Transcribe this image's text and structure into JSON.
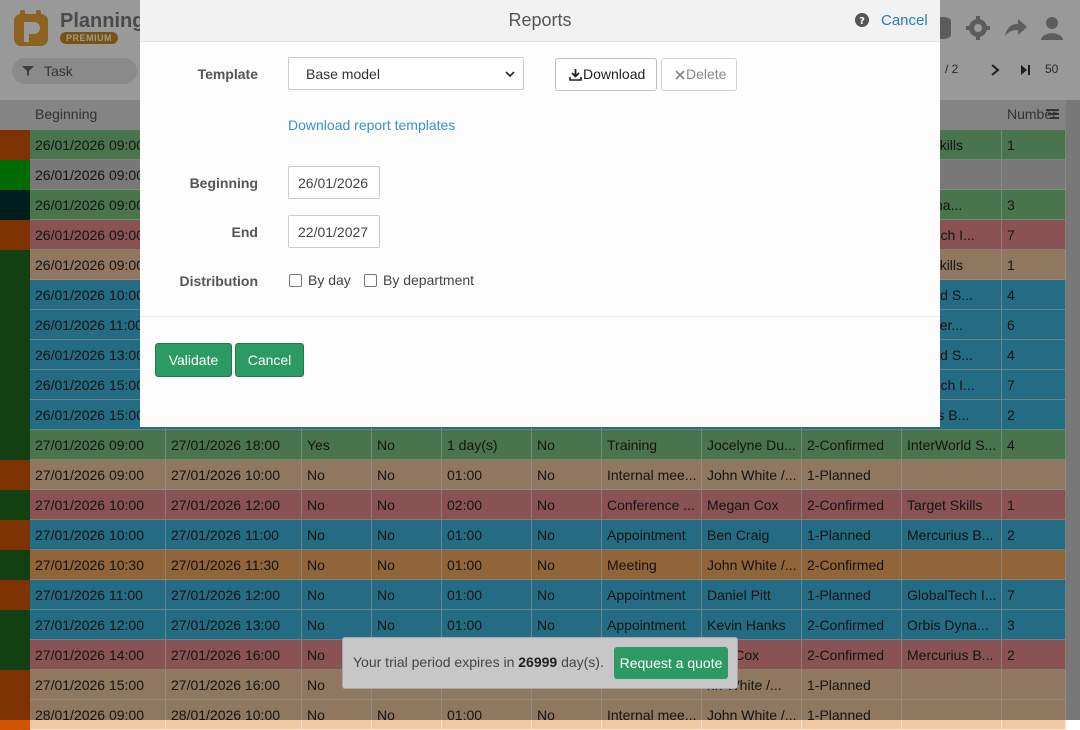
{
  "app": {
    "name": "Planning",
    "badge": "PREMIUM",
    "search_placeholder": "Task",
    "page_indicator": "/ 2",
    "page_size": "50"
  },
  "grid": {
    "columns": [
      "Beginning",
      "",
      "",
      "",
      "",
      "",
      "",
      "",
      "",
      "t",
      "Number"
    ],
    "rows": [
      {
        "stripe": "#d35400",
        "bg": "#7cc47f",
        "cells": [
          "26/01/2026 09:00",
          "",
          "",
          "",
          "",
          "",
          "",
          "",
          "",
          "get Skills",
          "1"
        ]
      },
      {
        "stripe": "#00b200",
        "bg": "#c8c8c8",
        "cells": [
          "26/01/2026 09:00",
          "",
          "",
          "",
          "",
          "",
          "",
          "",
          "",
          "",
          ""
        ]
      },
      {
        "stripe": "#003333",
        "bg": "#7cc47f",
        "cells": [
          "26/01/2026 09:00",
          "",
          "",
          "",
          "",
          "",
          "",
          "",
          "",
          "s Dyna...",
          "3"
        ]
      },
      {
        "stripe": "#d35400",
        "bg": "#e58a8a",
        "cells": [
          "26/01/2026 09:00",
          "",
          "",
          "",
          "",
          "",
          "",
          "",
          "",
          "balTech I...",
          "7"
        ]
      },
      {
        "stripe": "#1e6b1e",
        "bg": "#f0c9a0",
        "cells": [
          "26/01/2026 09:00",
          "",
          "",
          "",
          "",
          "",
          "",
          "",
          "",
          "get Skills",
          "1"
        ]
      },
      {
        "stripe": "#1e6b1e",
        "bg": "#3cb3dd",
        "cells": [
          "26/01/2026 10:00",
          "",
          "",
          "",
          "",
          "",
          "",
          "",
          "",
          "rWorld S...",
          "4"
        ]
      },
      {
        "stripe": "#1e6b1e",
        "bg": "#3cb3dd",
        "cells": [
          "26/01/2026 11:00",
          "",
          "",
          "",
          "",
          "",
          "",
          "",
          "",
          "eSpher...",
          "6"
        ]
      },
      {
        "stripe": "#1e6b1e",
        "bg": "#3cb3dd",
        "cells": [
          "26/01/2026 13:00",
          "",
          "",
          "",
          "",
          "",
          "",
          "",
          "",
          "rWorld S...",
          "4"
        ]
      },
      {
        "stripe": "#1e6b1e",
        "bg": "#3cb3dd",
        "cells": [
          "26/01/2026 15:00",
          "",
          "",
          "",
          "",
          "",
          "",
          "",
          "",
          "balTech I...",
          "7"
        ]
      },
      {
        "stripe": "#1e6b1e",
        "bg": "#3cb3dd",
        "cells": [
          "26/01/2026 15:00",
          "",
          "",
          "",
          "",
          "",
          "",
          "",
          "",
          "curius B...",
          "2"
        ]
      },
      {
        "stripe": "#1e6b1e",
        "bg": "#7cc47f",
        "cells": [
          "27/01/2026 09:00",
          "27/01/2026 18:00",
          "Yes",
          "No",
          "1 day(s)",
          "No",
          "Training",
          "Jocelyne Du...",
          "2-Confirmed",
          "InterWorld S...",
          "4"
        ]
      },
      {
        "stripe": "#d35400",
        "bg": "#f0c9a0",
        "cells": [
          "27/01/2026 09:00",
          "27/01/2026 10:00",
          "No",
          "No",
          "01:00",
          "No",
          "Internal mee...",
          "John White /...",
          "1-Planned",
          "",
          ""
        ]
      },
      {
        "stripe": "#1e6b1e",
        "bg": "#e58a8a",
        "cells": [
          "27/01/2026 10:00",
          "27/01/2026 12:00",
          "No",
          "No",
          "02:00",
          "No",
          "Conference ...",
          "Megan Cox",
          "2-Confirmed",
          "Target Skills",
          "1"
        ]
      },
      {
        "stripe": "#d35400",
        "bg": "#3cb3dd",
        "cells": [
          "27/01/2026 10:00",
          "27/01/2026 11:00",
          "No",
          "No",
          "01:00",
          "No",
          "Appointment",
          "Ben Craig",
          "1-Planned",
          "Mercurius B...",
          "2"
        ]
      },
      {
        "stripe": "#1e6b1e",
        "bg": "#f0a860",
        "cells": [
          "27/01/2026 10:30",
          "27/01/2026 11:30",
          "No",
          "No",
          "01:00",
          "No",
          "Meeting",
          "John White /...",
          "2-Confirmed",
          "",
          ""
        ]
      },
      {
        "stripe": "#d35400",
        "bg": "#3cb3dd",
        "cells": [
          "27/01/2026 11:00",
          "27/01/2026 12:00",
          "No",
          "No",
          "01:00",
          "No",
          "Appointment",
          "Daniel Pitt",
          "1-Planned",
          "GlobalTech I...",
          "7"
        ]
      },
      {
        "stripe": "#1e6b1e",
        "bg": "#3cb3dd",
        "cells": [
          "27/01/2026 12:00",
          "27/01/2026 13:00",
          "No",
          "No",
          "01:00",
          "No",
          "Appointment",
          "Kevin Hanks",
          "2-Confirmed",
          "Orbis Dyna...",
          "3"
        ]
      },
      {
        "stripe": "#1e6b1e",
        "bg": "#e58a8a",
        "cells": [
          "27/01/2026 14:00",
          "27/01/2026 16:00",
          "No",
          "",
          "",
          "",
          "",
          "gan Cox",
          "2-Confirmed",
          "Mercurius B...",
          "2"
        ]
      },
      {
        "stripe": "#d35400",
        "bg": "#f0c9a0",
        "cells": [
          "27/01/2026 15:00",
          "27/01/2026 16:00",
          "No",
          "",
          "",
          "",
          "",
          "hn White /...",
          "1-Planned",
          "",
          ""
        ]
      },
      {
        "stripe": "#d35400",
        "bg": "#f0c9a0",
        "cells": [
          "28/01/2026 09:00",
          "28/01/2026 10:00",
          "No",
          "No",
          "01:00",
          "No",
          "Internal mee...",
          "John White /...",
          "1-Planned",
          "",
          ""
        ]
      }
    ]
  },
  "modal": {
    "title": "Reports",
    "cancel_link": "Cancel",
    "template_label": "Template",
    "template_value": "Base model",
    "download_button": "Download",
    "delete_button": "Delete",
    "templates_link": "Download report templates",
    "beginning_label": "Beginning",
    "beginning_value": "26/01/2026",
    "end_label": "End",
    "end_value": "22/01/2027",
    "distribution_label": "Distribution",
    "by_day_label": "By day",
    "by_department_label": "By department",
    "validate_button": "Validate",
    "cancel_button": "Cancel"
  },
  "trial": {
    "text_before": "Your trial period expires in ",
    "days": "26999",
    "text_after": " day(s).",
    "quote_button": "Request a quote"
  },
  "colors": {
    "accent_green": "#2b9b63",
    "link_blue": "#3a8fd0"
  }
}
